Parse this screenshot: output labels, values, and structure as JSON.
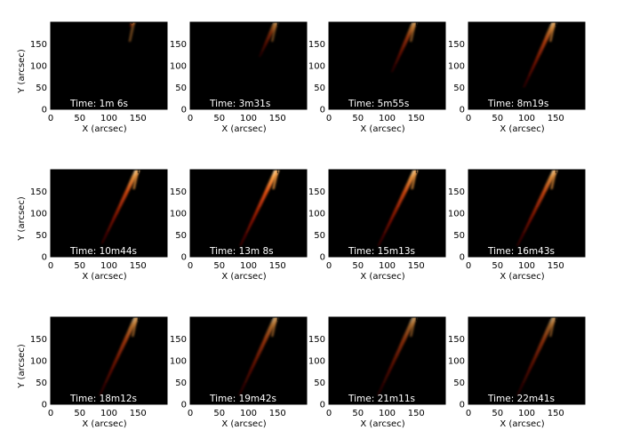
{
  "chart_data": {
    "type": "heatmap",
    "layout": {
      "rows": 3,
      "cols": 4
    },
    "shared_axes": {
      "xlabel": "X (arcsec)",
      "ylabel": "Y (arcsec)",
      "xlim": [
        0,
        200
      ],
      "ylim": [
        0,
        200
      ],
      "xticks": [
        0,
        50,
        100,
        150
      ],
      "yticks": [
        0,
        50,
        100,
        150
      ],
      "grid": false
    },
    "colormap": [
      "#000000",
      "#5a0000",
      "#a01400",
      "#d84a10",
      "#f59a40",
      "#fff0c8"
    ],
    "panels": [
      {
        "label_prefix": "Time:",
        "time": "1m 6s",
        "ribbon": {
          "y_bottom": 188,
          "x_bottom": 137,
          "x_top": 143,
          "brightness": 0.55
        }
      },
      {
        "label_prefix": "Time:",
        "time": "3m31s",
        "ribbon": {
          "y_bottom": 120,
          "x_bottom": 119,
          "x_top": 148,
          "brightness": 0.55
        }
      },
      {
        "label_prefix": "Time:",
        "time": "5m55s",
        "ribbon": {
          "y_bottom": 85,
          "x_bottom": 108,
          "x_top": 148,
          "brightness": 0.65
        }
      },
      {
        "label_prefix": "Time:",
        "time": "8m19s",
        "ribbon": {
          "y_bottom": 50,
          "x_bottom": 95,
          "x_top": 148,
          "brightness": 0.75
        }
      },
      {
        "label_prefix": "Time:",
        "time": "10m44s",
        "ribbon": {
          "y_bottom": 30,
          "x_bottom": 88,
          "x_top": 150,
          "brightness": 0.9
        }
      },
      {
        "label_prefix": "Time:",
        "time": "13m 8s",
        "ribbon": {
          "y_bottom": 25,
          "x_bottom": 86,
          "x_top": 150,
          "brightness": 1.0
        }
      },
      {
        "label_prefix": "Time:",
        "time": "15m13s",
        "ribbon": {
          "y_bottom": 25,
          "x_bottom": 85,
          "x_top": 150,
          "brightness": 0.9
        }
      },
      {
        "label_prefix": "Time:",
        "time": "16m43s",
        "ribbon": {
          "y_bottom": 25,
          "x_bottom": 84,
          "x_top": 150,
          "brightness": 0.85
        }
      },
      {
        "label_prefix": "Time:",
        "time": "18m12s",
        "ribbon": {
          "y_bottom": 20,
          "x_bottom": 84,
          "x_top": 148,
          "brightness": 0.7
        }
      },
      {
        "label_prefix": "Time:",
        "time": "19m42s",
        "ribbon": {
          "y_bottom": 20,
          "x_bottom": 84,
          "x_top": 148,
          "brightness": 0.65
        }
      },
      {
        "label_prefix": "Time:",
        "time": "21m11s",
        "ribbon": {
          "y_bottom": 20,
          "x_bottom": 84,
          "x_top": 148,
          "brightness": 0.6
        }
      },
      {
        "label_prefix": "Time:",
        "time": "22m41s",
        "ribbon": {
          "y_bottom": 20,
          "x_bottom": 84,
          "x_top": 148,
          "brightness": 0.6
        }
      }
    ]
  }
}
